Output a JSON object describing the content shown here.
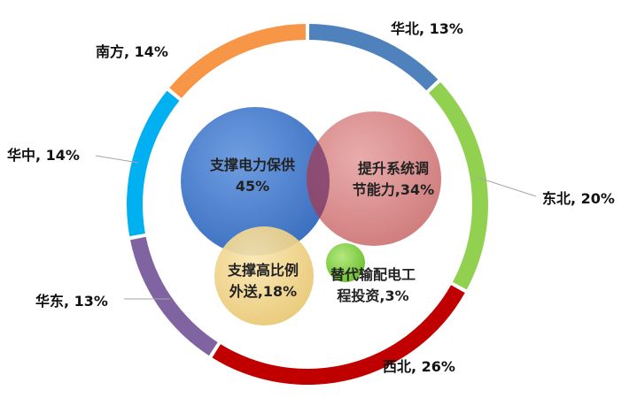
{
  "chart_data": [
    {
      "type": "pie",
      "variant": "donut",
      "categories": [
        "华北",
        "东北",
        "西北",
        "华东",
        "华中",
        "南方"
      ],
      "values": [
        13,
        20,
        26,
        13,
        14,
        14
      ],
      "labels": [
        "华北, 13%",
        "东北, 20%",
        "西北, 26%",
        "华东, 13%",
        "华中, 14%",
        "南方, 14%"
      ],
      "colors": [
        "#4f81bd",
        "#92d050",
        "#c00000",
        "#8064a2",
        "#00b0f0",
        "#f79646"
      ]
    },
    {
      "type": "bubble",
      "items": [
        {
          "lines": [
            "支撑电力保供",
            "45%"
          ],
          "value": 45,
          "color": "#4a7fcf"
        },
        {
          "lines": [
            "提升系统调",
            "节能力,34%"
          ],
          "value": 34,
          "color": "#d98080"
        },
        {
          "lines": [
            "支撑高比例",
            "外送,18%"
          ],
          "value": 18,
          "color": "#f3d68a"
        },
        {
          "lines": [
            "替代输配电工",
            "程投资,3%"
          ],
          "value": 3,
          "color": "#8fd14f"
        }
      ]
    }
  ]
}
